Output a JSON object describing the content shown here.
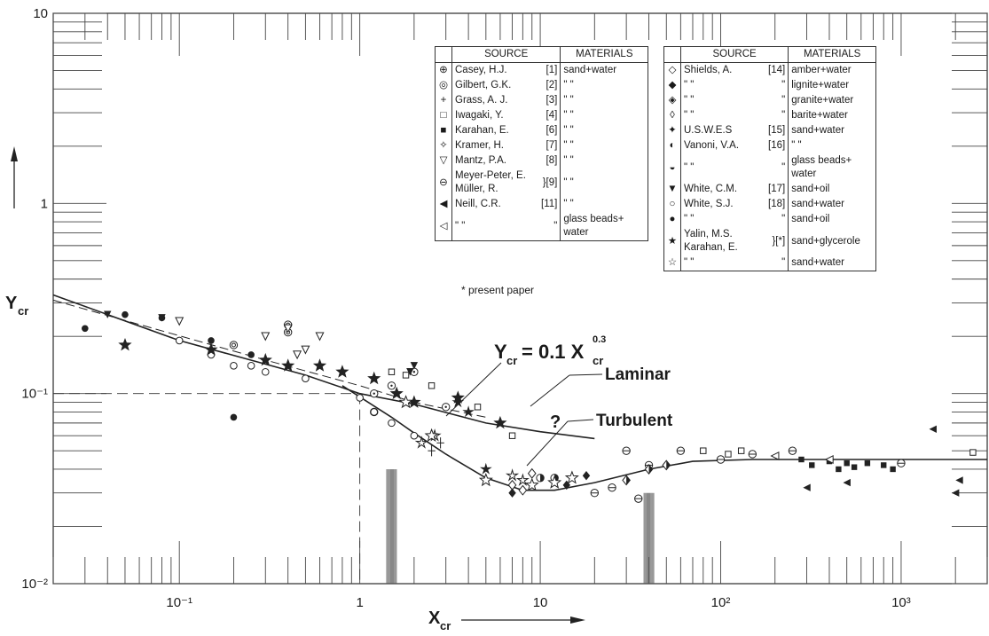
{
  "chart_data": {
    "type": "scatter",
    "xlabel": "X_cr",
    "ylabel": "Y_cr",
    "xscale": "log",
    "yscale": "log",
    "xlim": [
      0.02,
      3000
    ],
    "ylim": [
      0.01,
      10
    ],
    "x_tick_labels": [
      "10⁻¹",
      "1",
      "10",
      "10²",
      "10³"
    ],
    "x_ticks": [
      0.1,
      1,
      10,
      100,
      1000
    ],
    "y_tick_labels": [
      "10",
      "1",
      "10⁻¹",
      "10⁻²"
    ],
    "y_ticks": [
      10,
      1,
      0.1,
      0.01
    ],
    "annotations": {
      "formula_prefix": "Y",
      "formula_sub": "cr",
      "formula_eq": "= 0.1 X",
      "formula_sup": "0.3",
      "formula_sub2": "cr",
      "laminar": "Laminar",
      "turbulent": "Turbulent",
      "question": "?"
    },
    "lines": [
      {
        "name": "Laminar",
        "style": "solid-dashed",
        "x": [
          0.02,
          0.1,
          0.5,
          1,
          2,
          5,
          10,
          20
        ],
        "y": [
          0.33,
          0.19,
          0.125,
          0.1,
          0.088,
          0.07,
          0.063,
          0.058
        ]
      },
      {
        "name": "Turbulent",
        "style": "solid",
        "x": [
          0.8,
          1.5,
          2,
          3,
          5,
          8,
          12,
          20,
          40,
          70,
          150,
          500,
          3000
        ],
        "y": [
          0.11,
          0.075,
          0.062,
          0.048,
          0.036,
          0.031,
          0.031,
          0.034,
          0.04,
          0.044,
          0.045,
          0.045,
          0.045
        ]
      },
      {
        "name": "Y_cr = 0.1 X_cr^0.3 (dashed)",
        "style": "dashed",
        "x": [
          0.02,
          0.3,
          1,
          2,
          5
        ],
        "y": [
          0.31,
          0.15,
          0.11,
          0.09,
          0.075
        ]
      }
    ],
    "series": [
      {
        "name": "Casey, H.J.",
        "marker": "circle-dot",
        "x": [
          1.5,
          2.0,
          3.0,
          1.2
        ],
        "y": [
          0.11,
          0.13,
          0.085,
          0.1
        ]
      },
      {
        "name": "Gilbert, G.K.",
        "marker": "circle-ring",
        "x": [
          0.4,
          0.4,
          0.2
        ],
        "y": [
          0.21,
          0.23,
          0.18
        ]
      },
      {
        "name": "Grass, A.J.",
        "marker": "plus",
        "x": [
          2.8,
          2.5
        ],
        "y": [
          0.055,
          0.05
        ]
      },
      {
        "name": "Iwagaki, Y.",
        "marker": "open-square",
        "x": [
          1.5,
          1.8,
          2.5,
          4.5,
          7,
          80,
          110,
          130,
          2500
        ],
        "y": [
          0.13,
          0.125,
          0.11,
          0.085,
          0.06,
          0.05,
          0.048,
          0.05,
          0.049
        ]
      },
      {
        "name": "Karahan, E.",
        "marker": "filled-square",
        "x": [
          280,
          320,
          400,
          450,
          500,
          550,
          650,
          800,
          900
        ],
        "y": [
          0.045,
          0.042,
          0.044,
          0.04,
          0.043,
          0.041,
          0.043,
          0.042,
          0.04
        ]
      },
      {
        "name": "Kramer, H.",
        "marker": "star-diamond",
        "x": [
          2.2,
          2.6,
          7,
          8
        ],
        "y": [
          0.055,
          0.06,
          0.037,
          0.035
        ]
      },
      {
        "name": "Mantz, P.A.",
        "marker": "open-triangle-down",
        "x": [
          0.1,
          0.3,
          0.4,
          0.5,
          0.6,
          0.45
        ],
        "y": [
          0.24,
          0.2,
          0.22,
          0.17,
          0.2,
          0.16
        ]
      },
      {
        "name": "Meyer-Peter, E. Müller, R.",
        "marker": "circle-dash",
        "x": [
          20,
          25,
          30,
          35,
          40,
          60,
          100,
          150,
          250,
          1000
        ],
        "y": [
          0.03,
          0.032,
          0.05,
          0.028,
          0.042,
          0.05,
          0.045,
          0.048,
          0.05,
          0.043
        ]
      },
      {
        "name": "Neill, C.R.",
        "marker": "filled-triangle-left",
        "x": [
          300,
          500,
          1500,
          2000,
          2100
        ],
        "y": [
          0.032,
          0.034,
          0.065,
          0.03,
          0.035
        ]
      },
      {
        "name": "Neill, C.R. (glass beads + water)",
        "marker": "open-triangle-left",
        "x": [
          200,
          400
        ],
        "y": [
          0.047,
          0.045
        ]
      },
      {
        "name": "Shields, A.",
        "marker": "open-diamond",
        "x": [
          7,
          8,
          9
        ],
        "y": [
          0.033,
          0.031,
          0.038
        ]
      },
      {
        "name": "Shields, A. (lignite + water)",
        "marker": "filled-diamond",
        "x": [
          7,
          14,
          18
        ],
        "y": [
          0.03,
          0.033,
          0.037
        ]
      },
      {
        "name": "Shields, A. (granite + water)",
        "marker": "half-diamond",
        "x": [
          30,
          40,
          50
        ],
        "y": [
          0.035,
          0.04,
          0.042
        ]
      },
      {
        "name": "U.S.W.E.S",
        "marker": "filled-star-diamond",
        "x": [
          3.5,
          4,
          5
        ],
        "y": [
          0.09,
          0.08,
          0.04
        ]
      },
      {
        "name": "Vanoni, V.A.",
        "marker": "half-circle",
        "x": [
          1.2,
          10,
          12
        ],
        "y": [
          0.08,
          0.036,
          0.036
        ]
      },
      {
        "name": "White, C.M.",
        "marker": "filled-triangle-down",
        "x": [
          0.04,
          0.08,
          1.9,
          2.0
        ],
        "y": [
          0.26,
          0.25,
          0.13,
          0.14
        ]
      },
      {
        "name": "White, S.J.",
        "marker": "open-circle",
        "x": [
          0.1,
          0.15,
          0.2,
          0.25,
          0.3,
          0.5,
          1,
          1.2,
          1.5,
          2
        ],
        "y": [
          0.19,
          0.16,
          0.14,
          0.14,
          0.13,
          0.12,
          0.095,
          0.08,
          0.07,
          0.06
        ]
      },
      {
        "name": "White, S.J. (sand + oil)",
        "marker": "filled-circle",
        "x": [
          0.03,
          0.05,
          0.08,
          0.15,
          0.2,
          0.25
        ],
        "y": [
          0.22,
          0.26,
          0.25,
          0.19,
          0.075,
          0.16
        ]
      },
      {
        "name": "Yalin, M.S. Karahan, E.",
        "marker": "filled-star",
        "x": [
          0.05,
          0.15,
          0.3,
          0.4,
          0.6,
          0.8,
          1.2,
          1.6,
          2,
          3.5,
          6
        ],
        "y": [
          0.18,
          0.17,
          0.15,
          0.14,
          0.14,
          0.13,
          0.12,
          0.1,
          0.09,
          0.095,
          0.07
        ]
      },
      {
        "name": "Yalin, M.S. Karahan, E. (sand + water)",
        "marker": "open-star",
        "x": [
          1.8,
          2.5,
          5,
          9,
          12,
          15
        ],
        "y": [
          0.09,
          0.06,
          0.035,
          0.033,
          0.034,
          0.036
        ]
      }
    ],
    "legend": {
      "placement": "top-right",
      "left": {
        "h_source": "SOURCE",
        "h_materials": "MATERIALS",
        "rows": [
          {
            "sym": "⊕",
            "src": "Casey, H.J.",
            "ref": "[1]",
            "mat": "sand+water"
          },
          {
            "sym": "◎",
            "src": "Gilbert, G.K.",
            "ref": "[2]",
            "mat": "\"    \""
          },
          {
            "sym": "+",
            "src": "Grass, A. J.",
            "ref": "[3]",
            "mat": "\"    \""
          },
          {
            "sym": "□",
            "src": "Iwagaki, Y.",
            "ref": "[4]",
            "mat": "\"    \""
          },
          {
            "sym": "■",
            "src": "Karahan, E.",
            "ref": "[6]",
            "mat": "\"    \""
          },
          {
            "sym": "✧",
            "src": "Kramer, H.",
            "ref": "[7]",
            "mat": "\"    \""
          },
          {
            "sym": "▽",
            "src": "Mantz, P.A.",
            "ref": "[8]",
            "mat": "\"    \""
          },
          {
            "sym": "⊖",
            "src": "Meyer-Peter, E. Müller, R.",
            "ref": "}[9]",
            "mat": "\"    \""
          },
          {
            "sym": "◀",
            "src": "Neill, C.R.",
            "ref": "[11]",
            "mat": "\"    \""
          },
          {
            "sym": "◁",
            "src": "\"    \"",
            "ref": "\"",
            "mat": "glass beads+ water"
          }
        ],
        "footnote": "* present paper"
      },
      "right": {
        "h_source": "SOURCE",
        "h_materials": "MATERIALS",
        "rows": [
          {
            "sym": "◇",
            "src": "Shields, A.",
            "ref": "[14]",
            "mat": "amber+water"
          },
          {
            "sym": "◆",
            "src": "\"    \"",
            "ref": "\"",
            "mat": "lignite+water"
          },
          {
            "sym": "◈",
            "src": "\"    \"",
            "ref": "\"",
            "mat": "granite+water"
          },
          {
            "sym": "◊",
            "src": "\"    \"",
            "ref": "\"",
            "mat": "barite+water"
          },
          {
            "sym": "✦",
            "src": "U.S.W.E.S",
            "ref": "[15]",
            "mat": "sand+water"
          },
          {
            "sym": "◐",
            "src": "Vanoni, V.A.",
            "ref": "[16]",
            "mat": "\"    \""
          },
          {
            "sym": "◒",
            "src": "\"    \"",
            "ref": "\"",
            "mat": "glass beads+ water"
          },
          {
            "sym": "▼",
            "src": "White, C.M.",
            "ref": "[17]",
            "mat": "sand+oil"
          },
          {
            "sym": "○",
            "src": "White, S.J.",
            "ref": "[18]",
            "mat": "sand+water"
          },
          {
            "sym": "●",
            "src": "\"    \"",
            "ref": "\"",
            "mat": "sand+oil"
          },
          {
            "sym": "★",
            "src": "Yalin, M.S. Karahan, E.",
            "ref": "}[*]",
            "mat": "sand+glycerole"
          },
          {
            "sym": "☆",
            "src": "\"    \"",
            "ref": "\"",
            "mat": "sand+water"
          }
        ]
      }
    }
  }
}
